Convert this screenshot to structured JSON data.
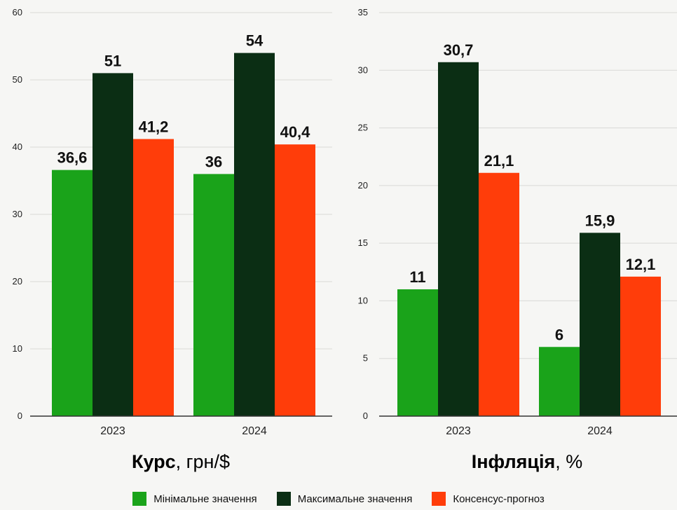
{
  "chart_data": [
    {
      "type": "bar",
      "title_bold": "Курс",
      "title_rest": ", грн/$",
      "categories": [
        "2023",
        "2024"
      ],
      "ylim": [
        0,
        60
      ],
      "yticks": [
        "0",
        "10",
        "20",
        "30",
        "40",
        "50",
        "60"
      ],
      "grid": true,
      "series": [
        {
          "name": "Мінімальне значення",
          "values": [
            36.6,
            36
          ],
          "labels": [
            "36,6",
            "36"
          ]
        },
        {
          "name": "Максимальне значення",
          "values": [
            51,
            54
          ],
          "labels": [
            "51",
            "54"
          ]
        },
        {
          "name": "Консенсус-прогноз",
          "values": [
            41.2,
            40.4
          ],
          "labels": [
            "41,2",
            "40,4"
          ]
        }
      ]
    },
    {
      "type": "bar",
      "title_bold": "Інфляція",
      "title_rest": ", %",
      "categories": [
        "2023",
        "2024"
      ],
      "ylim": [
        0,
        35
      ],
      "yticks": [
        "0",
        "5",
        "10",
        "15",
        "20",
        "25",
        "30",
        "35"
      ],
      "grid": true,
      "series": [
        {
          "name": "Мінімальне значення",
          "values": [
            11,
            6
          ],
          "labels": [
            "11",
            "6"
          ]
        },
        {
          "name": "Максимальне значення",
          "values": [
            30.7,
            15.9
          ],
          "labels": [
            "30,7",
            "15,9"
          ]
        },
        {
          "name": "Консенсус-прогноз",
          "values": [
            21.1,
            12.1
          ],
          "labels": [
            "21,1",
            "12,1"
          ]
        }
      ]
    }
  ],
  "legend": [
    {
      "label": "Мінімальне значення",
      "color": "#1aa31a"
    },
    {
      "label": "Максимальне значення",
      "color": "#0b2e14"
    },
    {
      "label": "Консенсус-прогноз",
      "color": "#ff3d0a"
    }
  ],
  "colors": {
    "grid": "#d9d9d6",
    "axis": "#333333"
  }
}
